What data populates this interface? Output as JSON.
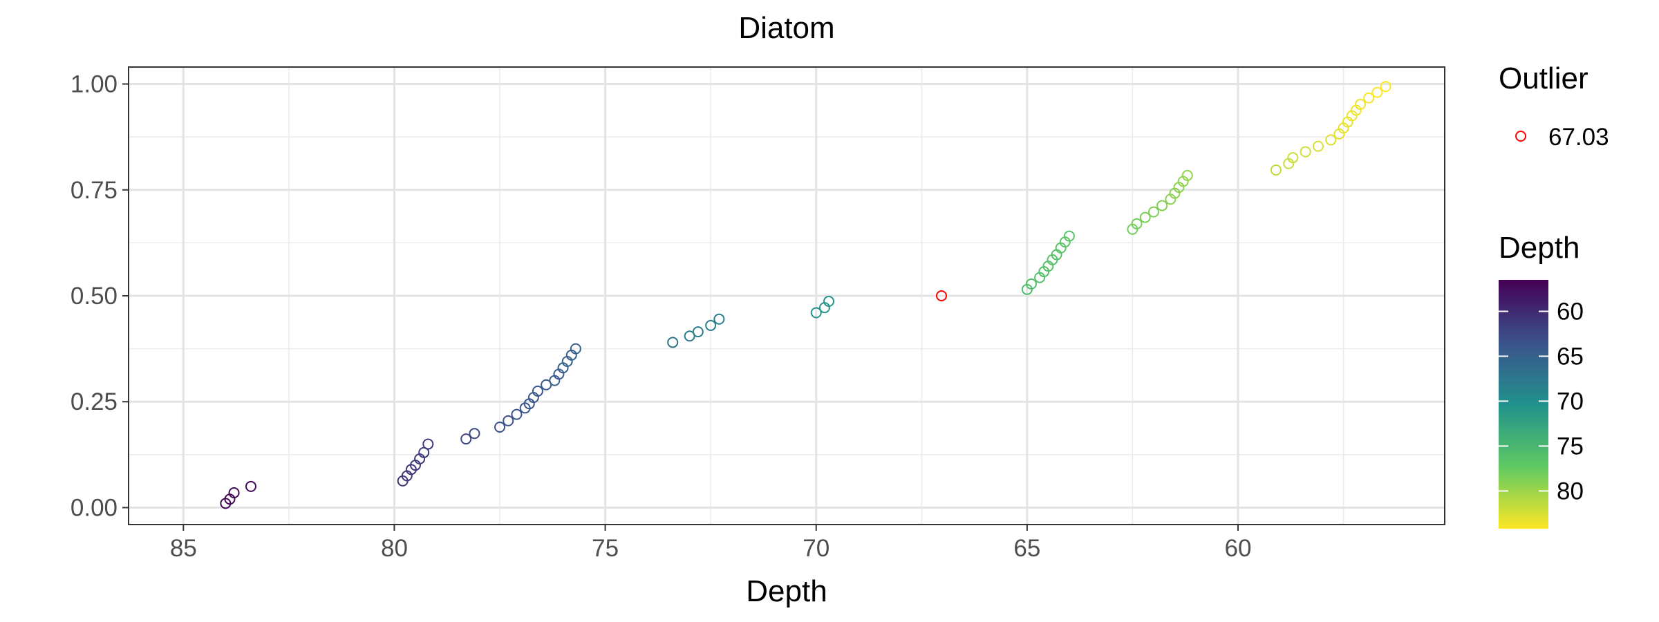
{
  "chart_data": {
    "type": "scatter",
    "title": "Diatom",
    "xlabel": "Depth",
    "ylabel": "",
    "x_reversed": true,
    "xlim": [
      86.3,
      55.1
    ],
    "ylim": [
      -0.04,
      1.04
    ],
    "x_ticks": [
      85,
      80,
      75,
      70,
      65,
      60
    ],
    "x_tick_labels": [
      "85",
      "80",
      "75",
      "70",
      "65",
      "60"
    ],
    "y_ticks": [
      0,
      0.25,
      0.5,
      0.75,
      1.0
    ],
    "y_tick_labels": [
      "0.00",
      "0.25",
      "0.50",
      "0.75",
      "1.00"
    ],
    "grid": true,
    "marker": "open-circle",
    "color_scale": {
      "name": "viridis",
      "title": "Depth",
      "range": [
        56.5,
        84.2
      ],
      "reversed": true,
      "ticks": [
        60,
        65,
        70,
        75,
        80
      ],
      "tick_labels": [
        "60",
        "65",
        "70",
        "75",
        "80"
      ],
      "stops": [
        "#440154",
        "#3b528b",
        "#21918c",
        "#5ec962",
        "#fde725"
      ]
    },
    "outlier": {
      "legend_title": "Outlier",
      "label": "67.03",
      "color": "#ff0000",
      "x": 67.03,
      "y": 0.5
    },
    "points": [
      {
        "x": 84.0,
        "y": 0.01
      },
      {
        "x": 83.9,
        "y": 0.02
      },
      {
        "x": 83.8,
        "y": 0.035
      },
      {
        "x": 83.4,
        "y": 0.05
      },
      {
        "x": 79.8,
        "y": 0.063
      },
      {
        "x": 79.7,
        "y": 0.075
      },
      {
        "x": 79.6,
        "y": 0.09
      },
      {
        "x": 79.5,
        "y": 0.1
      },
      {
        "x": 79.4,
        "y": 0.115
      },
      {
        "x": 79.3,
        "y": 0.13
      },
      {
        "x": 79.2,
        "y": 0.15
      },
      {
        "x": 78.3,
        "y": 0.162
      },
      {
        "x": 78.1,
        "y": 0.175
      },
      {
        "x": 77.5,
        "y": 0.19
      },
      {
        "x": 77.3,
        "y": 0.205
      },
      {
        "x": 77.1,
        "y": 0.22
      },
      {
        "x": 76.9,
        "y": 0.235
      },
      {
        "x": 76.8,
        "y": 0.245
      },
      {
        "x": 76.7,
        "y": 0.26
      },
      {
        "x": 76.6,
        "y": 0.275
      },
      {
        "x": 76.4,
        "y": 0.29
      },
      {
        "x": 76.2,
        "y": 0.3
      },
      {
        "x": 76.1,
        "y": 0.315
      },
      {
        "x": 76.0,
        "y": 0.33
      },
      {
        "x": 75.9,
        "y": 0.345
      },
      {
        "x": 75.8,
        "y": 0.36
      },
      {
        "x": 75.7,
        "y": 0.375
      },
      {
        "x": 73.4,
        "y": 0.39
      },
      {
        "x": 73.0,
        "y": 0.405
      },
      {
        "x": 72.8,
        "y": 0.415
      },
      {
        "x": 72.5,
        "y": 0.43
      },
      {
        "x": 72.3,
        "y": 0.445
      },
      {
        "x": 70.0,
        "y": 0.46
      },
      {
        "x": 69.8,
        "y": 0.472
      },
      {
        "x": 69.7,
        "y": 0.487
      },
      {
        "x": 65.0,
        "y": 0.515
      },
      {
        "x": 64.9,
        "y": 0.528
      },
      {
        "x": 64.7,
        "y": 0.543
      },
      {
        "x": 64.6,
        "y": 0.557
      },
      {
        "x": 64.5,
        "y": 0.57
      },
      {
        "x": 64.4,
        "y": 0.585
      },
      {
        "x": 64.3,
        "y": 0.597
      },
      {
        "x": 64.2,
        "y": 0.613
      },
      {
        "x": 64.1,
        "y": 0.627
      },
      {
        "x": 64.0,
        "y": 0.641
      },
      {
        "x": 62.5,
        "y": 0.657
      },
      {
        "x": 62.4,
        "y": 0.67
      },
      {
        "x": 62.2,
        "y": 0.685
      },
      {
        "x": 62.0,
        "y": 0.698
      },
      {
        "x": 61.8,
        "y": 0.713
      },
      {
        "x": 61.6,
        "y": 0.728
      },
      {
        "x": 61.5,
        "y": 0.742
      },
      {
        "x": 61.4,
        "y": 0.756
      },
      {
        "x": 61.3,
        "y": 0.77
      },
      {
        "x": 61.2,
        "y": 0.784
      },
      {
        "x": 59.1,
        "y": 0.797
      },
      {
        "x": 58.8,
        "y": 0.812
      },
      {
        "x": 58.7,
        "y": 0.826
      },
      {
        "x": 58.4,
        "y": 0.84
      },
      {
        "x": 58.1,
        "y": 0.853
      },
      {
        "x": 57.8,
        "y": 0.868
      },
      {
        "x": 57.6,
        "y": 0.882
      },
      {
        "x": 57.5,
        "y": 0.896
      },
      {
        "x": 57.4,
        "y": 0.91
      },
      {
        "x": 57.3,
        "y": 0.925
      },
      {
        "x": 57.2,
        "y": 0.938
      },
      {
        "x": 57.1,
        "y": 0.952
      },
      {
        "x": 56.9,
        "y": 0.967
      },
      {
        "x": 56.7,
        "y": 0.98
      },
      {
        "x": 56.5,
        "y": 0.994
      }
    ]
  }
}
